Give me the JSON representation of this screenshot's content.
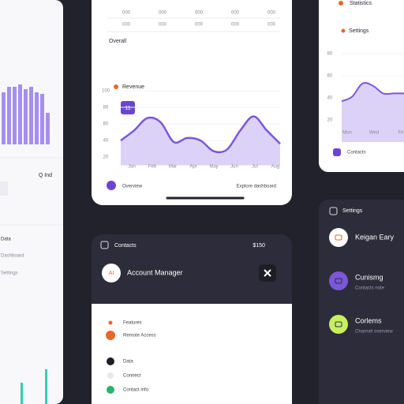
{
  "left_panel": {
    "label": "Q Ind",
    "section": "Data",
    "rows": [
      "Dashboard",
      "Settings"
    ],
    "bars": [
      66,
      73,
      73,
      76,
      70,
      73,
      66,
      64,
      40
    ],
    "bars_ylim": [
      0,
      100
    ],
    "teal_bars": [
      54,
      88
    ],
    "teal_ylim": [
      0,
      100
    ]
  },
  "revenue_card": {
    "table": [
      [
        "000",
        "000",
        "000",
        "000",
        "000"
      ],
      [
        "000",
        "000",
        "000",
        "000",
        "000"
      ]
    ],
    "title": "Overall",
    "chart": {
      "type": "area",
      "title": "Revenue",
      "badge": "11",
      "values": [
        40,
        52,
        67,
        62,
        38,
        43,
        40,
        27,
        29,
        52,
        69,
        52,
        36
      ],
      "x_tick_labels": [
        "Jan",
        "Feb",
        "Mar",
        "Apr",
        "May",
        "Jun",
        "Jul",
        "Aug"
      ],
      "ylim": [
        10,
        100
      ],
      "yticks": [
        20,
        40,
        60,
        80,
        100
      ],
      "color": "#7b57d9"
    },
    "footer_left": "Overview",
    "footer_right": "Explore dashboard"
  },
  "stats_card": {
    "header": "Statistics",
    "title": "Settings",
    "chart": {
      "type": "area",
      "values": [
        37,
        41,
        53,
        51,
        44,
        44,
        44
      ],
      "x_tick_labels": [
        "Mon",
        "Wed",
        "Fri"
      ],
      "ylim": [
        0,
        100
      ],
      "yticks": [
        20,
        40,
        60,
        80
      ],
      "color": "#7b57d9"
    },
    "footer": "Contacts"
  },
  "contacts_card": {
    "header": "Contacts",
    "amount": "$150",
    "account": "Account Manager",
    "avatar": "AI",
    "items": [
      "Features",
      "Remote Access",
      "Data",
      "Connect",
      "Contact info"
    ]
  },
  "settings_card": {
    "header": "Settings",
    "items": [
      {
        "title": "Keigan Eary"
      },
      {
        "title": "Cunismg",
        "sub": "Contacts note"
      },
      {
        "title": "Corlems",
        "sub": "Channel overview"
      }
    ]
  }
}
